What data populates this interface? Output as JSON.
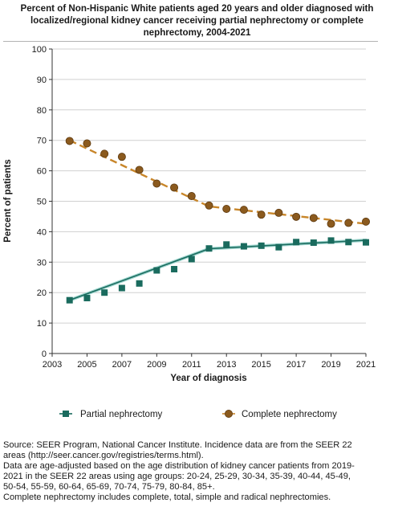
{
  "title_lines": [
    "Percent of Non-Hispanic White patients aged 20 years and older diagnosed with",
    "localized/regional kidney cancer receiving partial nephrectomy or complete",
    "nephrectomy, 2004-2021"
  ],
  "footer_lines": [
    "Source: SEER Program, National Cancer Institute. Incidence data are from the SEER 22",
    "areas (http://seer.cancer.gov/registries/terms.html).",
    "Data are age-adjusted based on the age distribution of kidney cancer patients from 2019-",
    "2021 in the SEER 22 areas using age groups: 20-24, 25-29, 30-34, 35-39, 40-44, 45-49,",
    "50-54, 55-59, 60-64, 65-69, 70-74, 75-79, 80-84, 85+.",
    "Complete nephrectomy includes complete, total, simple and radical nephrectomies."
  ],
  "chart_data": {
    "type": "line",
    "xlabel": "Year of diagnosis",
    "ylabel": "Percent of patients",
    "xlim": [
      2003,
      2021
    ],
    "ylim": [
      0,
      100
    ],
    "x_ticks": [
      2003,
      2005,
      2007,
      2009,
      2011,
      2013,
      2015,
      2017,
      2019,
      2021
    ],
    "y_ticks": [
      0,
      10,
      20,
      30,
      40,
      50,
      60,
      70,
      80,
      90,
      100
    ],
    "grid": "horizontal",
    "legend_position": "bottom",
    "x": [
      2004,
      2005,
      2006,
      2007,
      2008,
      2009,
      2010,
      2011,
      2012,
      2013,
      2014,
      2015,
      2016,
      2017,
      2018,
      2019,
      2020,
      2021
    ],
    "series": [
      {
        "name": "Partial nephrectomy",
        "marker": "square",
        "color": "#1a6b5e",
        "trend_color": "#9fd6cf",
        "values": [
          17.5,
          18.2,
          20.0,
          21.5,
          23.0,
          27.3,
          27.7,
          31.0,
          34.5,
          35.8,
          35.2,
          35.4,
          34.9,
          36.6,
          36.4,
          37.1,
          36.6,
          36.5
        ],
        "trend_points": [
          [
            2004,
            17.5
          ],
          [
            2012,
            34.4
          ],
          [
            2021,
            37.2
          ]
        ]
      },
      {
        "name": "Complete nephrectomy",
        "marker": "circle",
        "color": "#8b5a1e",
        "trend_color": "#c8862a",
        "values": [
          69.8,
          69.0,
          65.6,
          64.6,
          60.3,
          55.8,
          54.5,
          51.7,
          48.6,
          47.5,
          47.2,
          45.6,
          46.2,
          44.9,
          44.5,
          42.6,
          42.9,
          43.3
        ],
        "trend_points": [
          [
            2004,
            70.0
          ],
          [
            2012,
            48.3
          ],
          [
            2021,
            42.6
          ]
        ]
      }
    ]
  }
}
